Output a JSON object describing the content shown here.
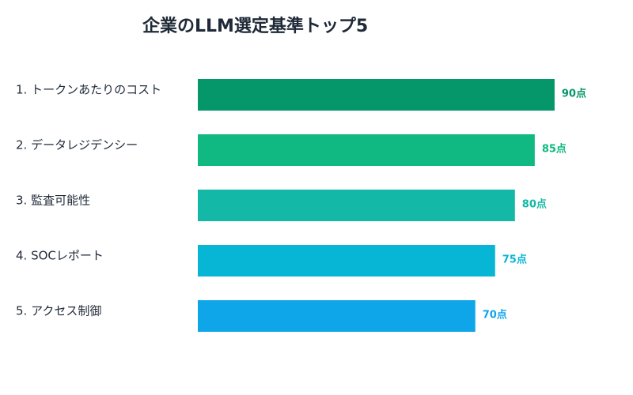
{
  "chart_data": {
    "type": "hbar",
    "title": "企業のLLM選定基準トップ5",
    "categories": [
      "1. トークンあたりのコスト",
      "2. データレジデンシー",
      "3. 監査可能性",
      "4. SOCレポート",
      "5. アクセス制御"
    ],
    "values": [
      90,
      85,
      80,
      75,
      70
    ],
    "value_labels": [
      "90点",
      "85点",
      "80点",
      "75点",
      "70点"
    ],
    "colors": [
      "#059669",
      "#10b981",
      "#14b8a6",
      "#06b6d4",
      "#0ea5e9"
    ],
    "xlim": [
      0,
      100
    ]
  }
}
